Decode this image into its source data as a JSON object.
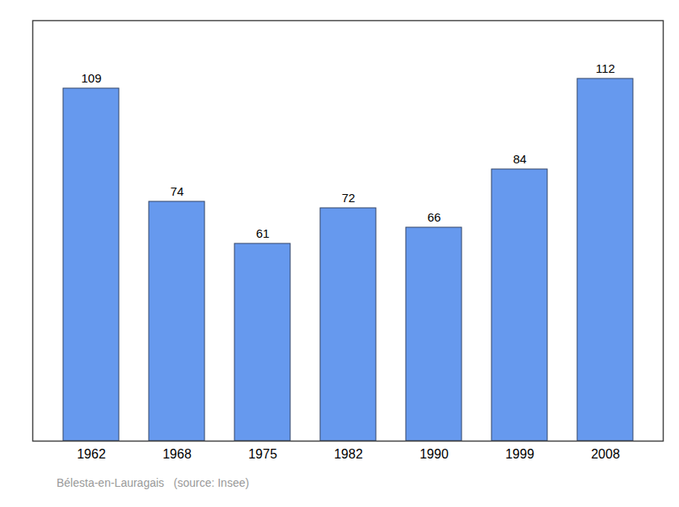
{
  "chart_data": {
    "type": "bar",
    "subtitle": "Bélesta-en-Lauragais   (source: Insee)",
    "categories": [
      "1962",
      "1968",
      "1975",
      "1982",
      "1990",
      "1999",
      "2008"
    ],
    "values": [
      109,
      74,
      61,
      72,
      66,
      84,
      112
    ],
    "color": "#6699EE",
    "ylim": [
      0,
      130
    ],
    "grid": false,
    "data_labels": true,
    "tick_labels": "x"
  }
}
